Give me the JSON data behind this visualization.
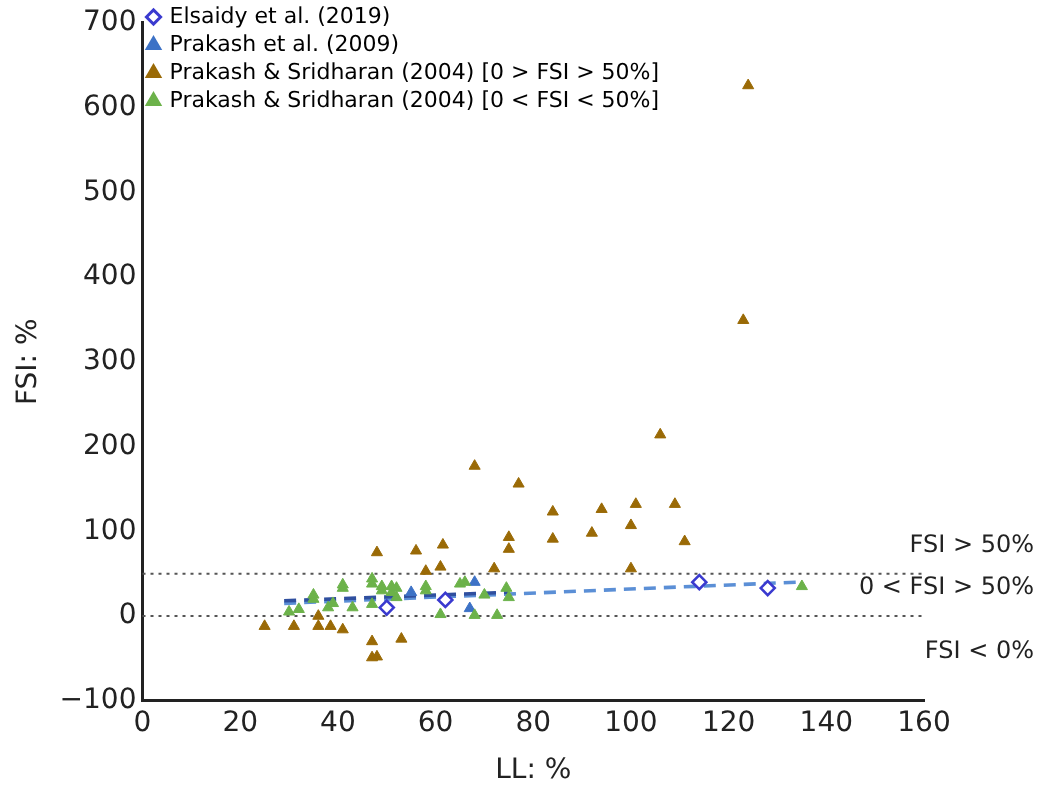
{
  "chart_data": {
    "type": "scatter",
    "xlabel": "LL: %",
    "ylabel": "FSI: %",
    "xlim": [
      0,
      160
    ],
    "xticks": [
      0,
      20,
      40,
      60,
      80,
      100,
      120,
      140,
      160
    ],
    "ylim": [
      -100,
      700
    ],
    "yticks": [
      -100,
      0,
      100,
      200,
      300,
      400,
      500,
      600,
      700
    ],
    "grid": false,
    "legend": "top left",
    "series": [
      {
        "name": "Elsaidy et al. (2019)",
        "color": "#3a3acf",
        "marker": "diamond",
        "x": [
          50,
          62,
          114,
          128
        ],
        "values": [
          10,
          19,
          40,
          33
        ]
      },
      {
        "name": "Prakash et al. (2009)",
        "color": "#3d72c6",
        "marker": "triangle",
        "x": [
          55,
          68,
          67
        ],
        "values": [
          28,
          40,
          9
        ]
      },
      {
        "name": "Prakash & Sridharan (2004) [0 > FSI > 50%]",
        "color": "#9a6a06",
        "marker": "triangle",
        "x": [
          48,
          56,
          61.5,
          58,
          61,
          68,
          77,
          72,
          75,
          75,
          84,
          84,
          124,
          123,
          106,
          94,
          101,
          109,
          92,
          100,
          111,
          100,
          25,
          31,
          36,
          36,
          38.5,
          41,
          47,
          47,
          48,
          53
        ],
        "values": [
          75,
          77,
          84,
          53,
          58,
          177,
          156,
          56,
          93,
          79,
          123,
          91,
          626,
          349,
          214,
          126,
          132,
          132,
          98,
          107,
          88,
          56,
          -12,
          -12,
          0,
          -12,
          -12,
          -16,
          -30,
          -49,
          -48,
          -27
        ]
      },
      {
        "name": "Prakash & Sridharan (2004) [0 < FSI < 50%]",
        "color": "#6cb24a",
        "marker": "triangle",
        "x": [
          30,
          32,
          35,
          38,
          39,
          41,
          43,
          47,
          47,
          49,
          51,
          52,
          52,
          58,
          61,
          65,
          66,
          68,
          70,
          72.6,
          74.5,
          75,
          135,
          35,
          41,
          47,
          49,
          51,
          58
        ],
        "values": [
          5,
          8,
          20,
          10,
          15,
          33,
          10,
          38,
          14,
          30,
          28,
          33,
          22,
          30,
          2,
          38,
          40,
          1,
          25,
          1,
          33,
          22,
          35,
          25,
          37,
          44,
          35,
          35,
          35
        ]
      },
      {
        "type": "line",
        "color": "#2f4f9f",
        "marker": "none",
        "line_style": "dashed",
        "x": [
          29,
          75
        ],
        "values": [
          18,
          28
        ]
      },
      {
        "type": "line",
        "color": "#5b8fd6",
        "marker": "none",
        "line_style": "dashed",
        "x": [
          29,
          134
        ],
        "values": [
          15,
          40
        ]
      }
    ],
    "ref_lines": [
      {
        "axis": "y",
        "value": 50,
        "label": "FSI > 50%",
        "color": "#555555",
        "line_style": "dotted"
      },
      {
        "axis": "y",
        "value": 0,
        "label": "0 < FSI > 50%",
        "color": "#555555",
        "line_style": "dotted"
      }
    ],
    "annotations": [
      "FSI < 0%"
    ]
  }
}
